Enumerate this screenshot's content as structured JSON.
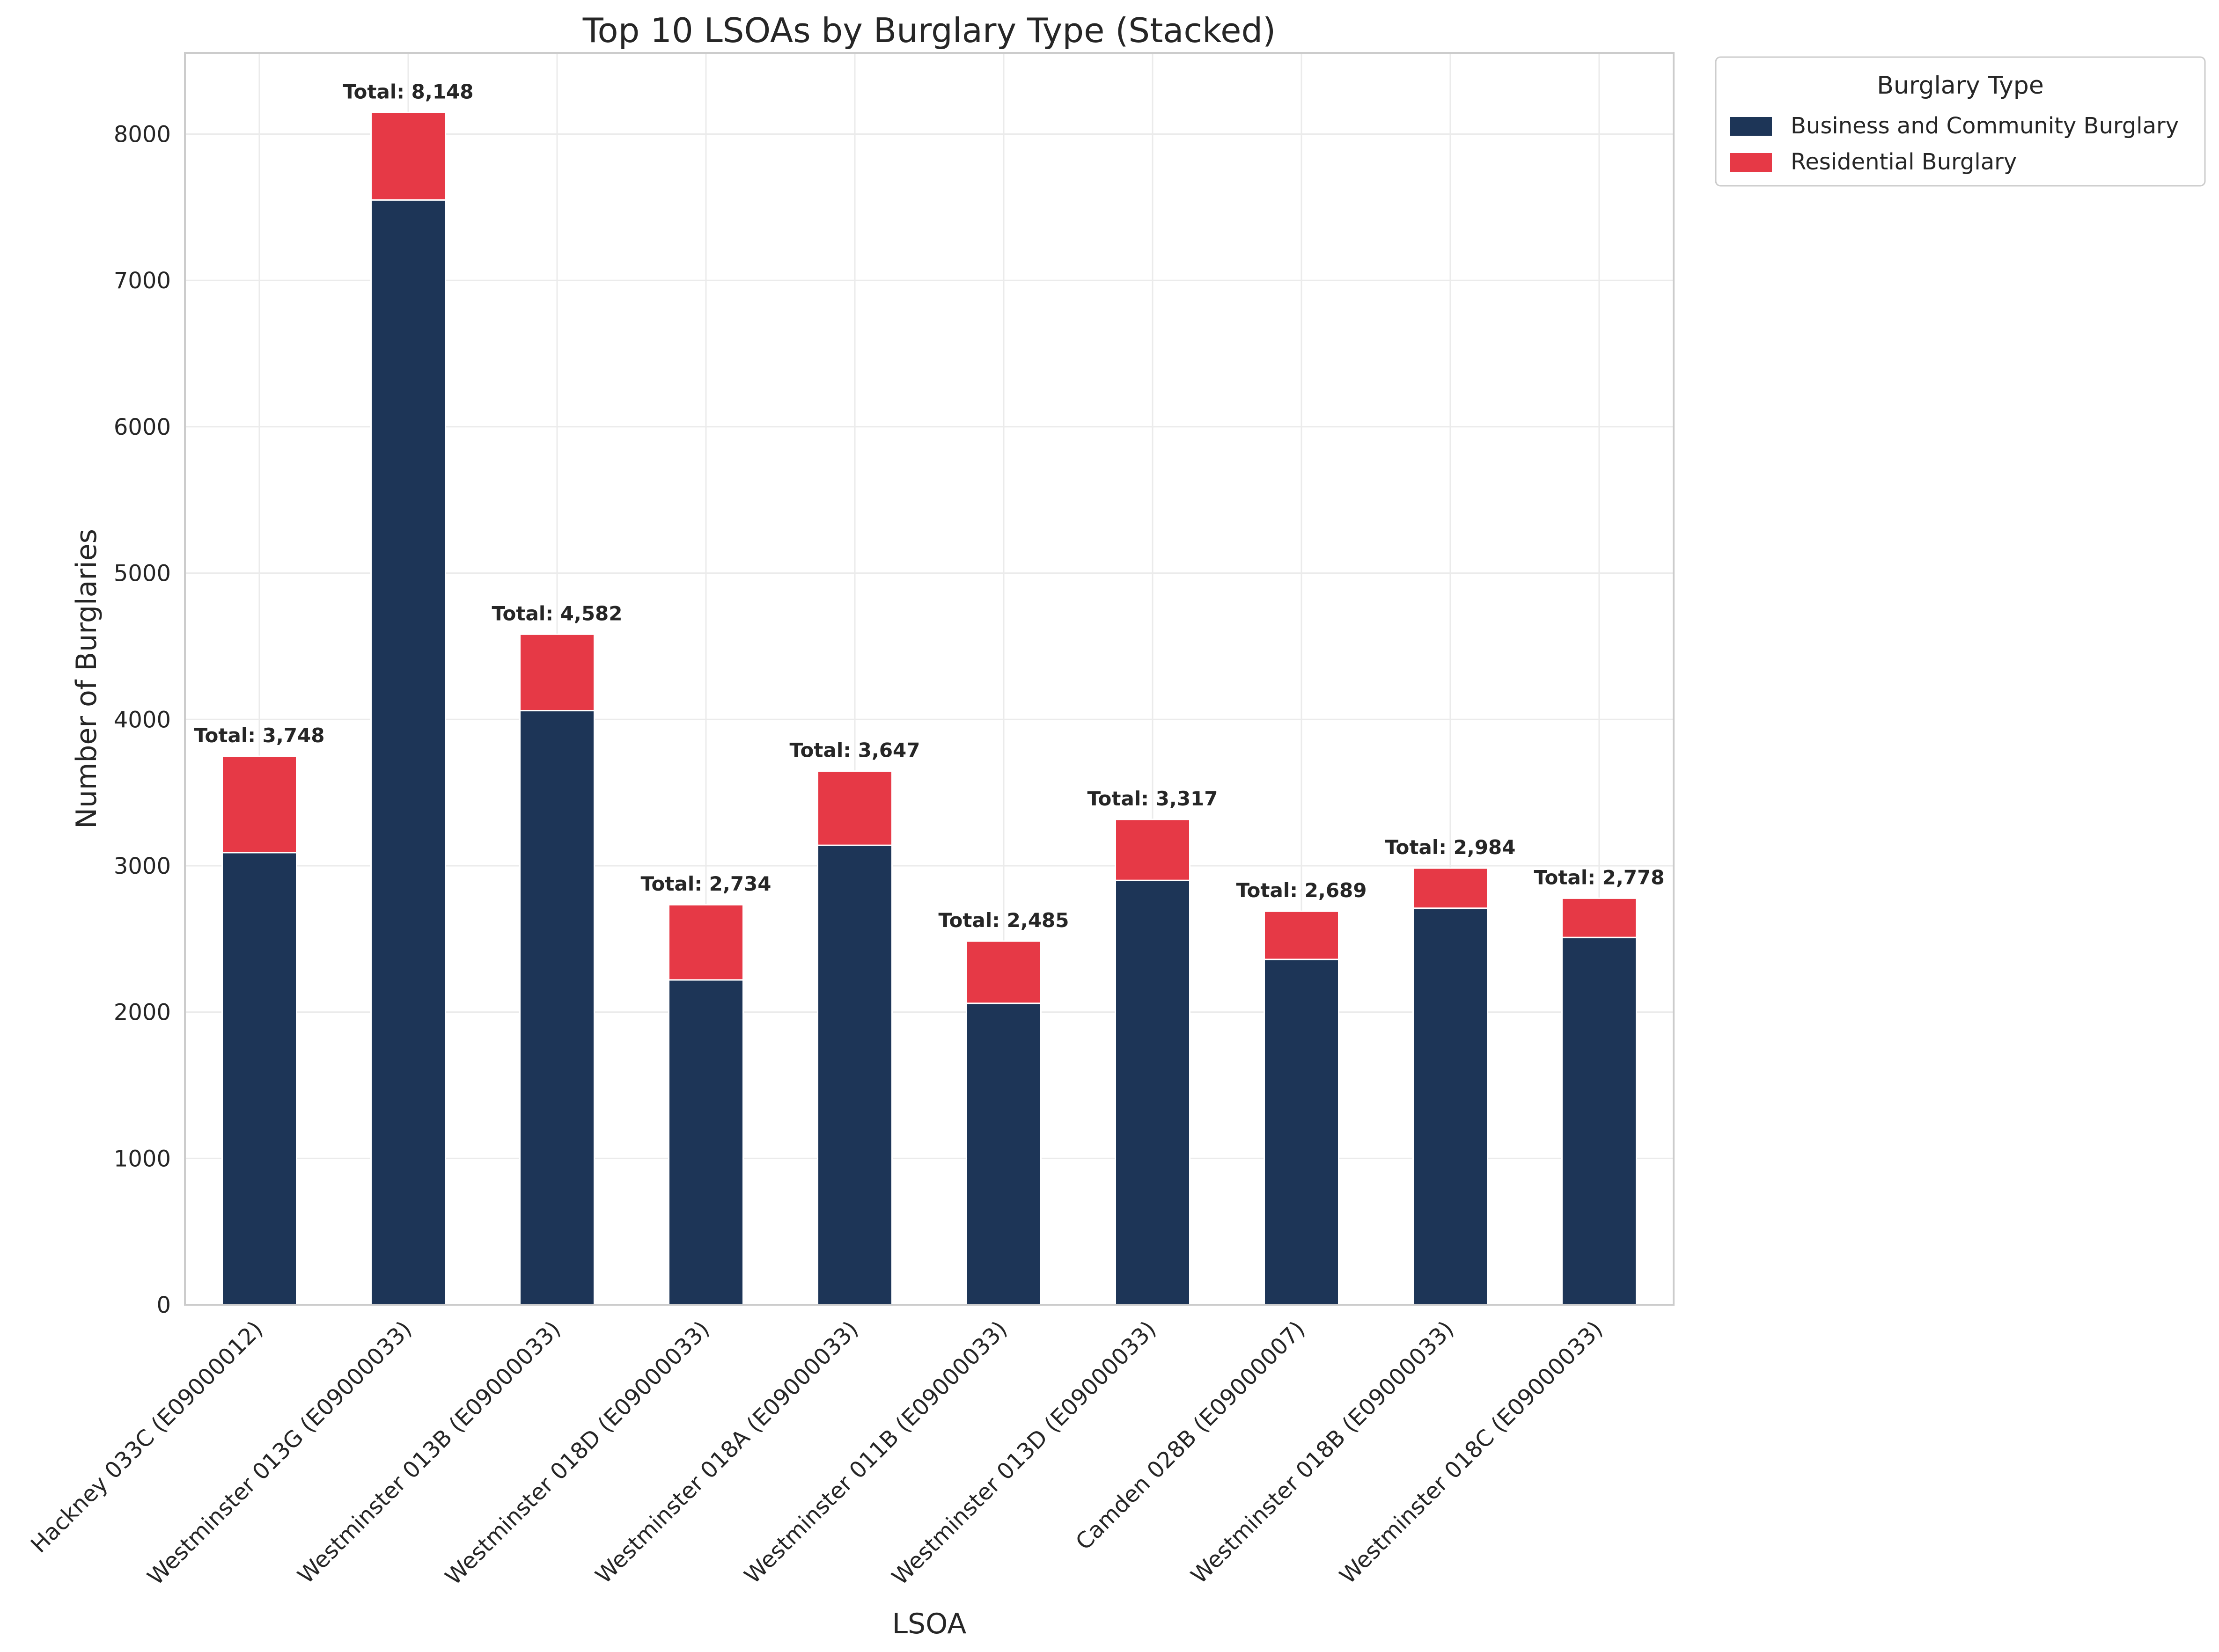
{
  "chart_data": {
    "type": "bar",
    "stacked": true,
    "title": "Top 10 LSOAs by Burglary Type (Stacked)",
    "xlabel": "LSOA",
    "ylabel": "Number of Burglaries",
    "ylim": [
      0,
      8555
    ],
    "yticks": [
      0,
      1000,
      2000,
      3000,
      4000,
      5000,
      6000,
      7000,
      8000
    ],
    "grid": true,
    "legend_title": "Burglary Type",
    "legend_position": "outside upper-right",
    "total_prefix": "Total: ",
    "categories": [
      "Hackney 033C (E09000012)",
      "Westminster 013G (E09000033)",
      "Westminster 013B (E09000033)",
      "Westminster 018D (E09000033)",
      "Westminster 018A (E09000033)",
      "Westminster 011B (E09000033)",
      "Westminster 013D (E09000033)",
      "Camden 028B (E09000007)",
      "Westminster 018B (E09000033)",
      "Westminster 018C (E09000033)"
    ],
    "series": [
      {
        "name": "Business and Community Burglary",
        "color": "#1d3557",
        "values": [
          3090,
          7550,
          4060,
          2220,
          3140,
          2060,
          2900,
          2360,
          2710,
          2510
        ]
      },
      {
        "name": "Residential Burglary",
        "color": "#e63946",
        "values": [
          658,
          598,
          522,
          514,
          507,
          425,
          417,
          329,
          274,
          268
        ]
      }
    ],
    "totals": [
      "3,748",
      "8,148",
      "4,582",
      "2,734",
      "3,647",
      "2,485",
      "3,317",
      "2,689",
      "2,984",
      "2,778"
    ]
  }
}
